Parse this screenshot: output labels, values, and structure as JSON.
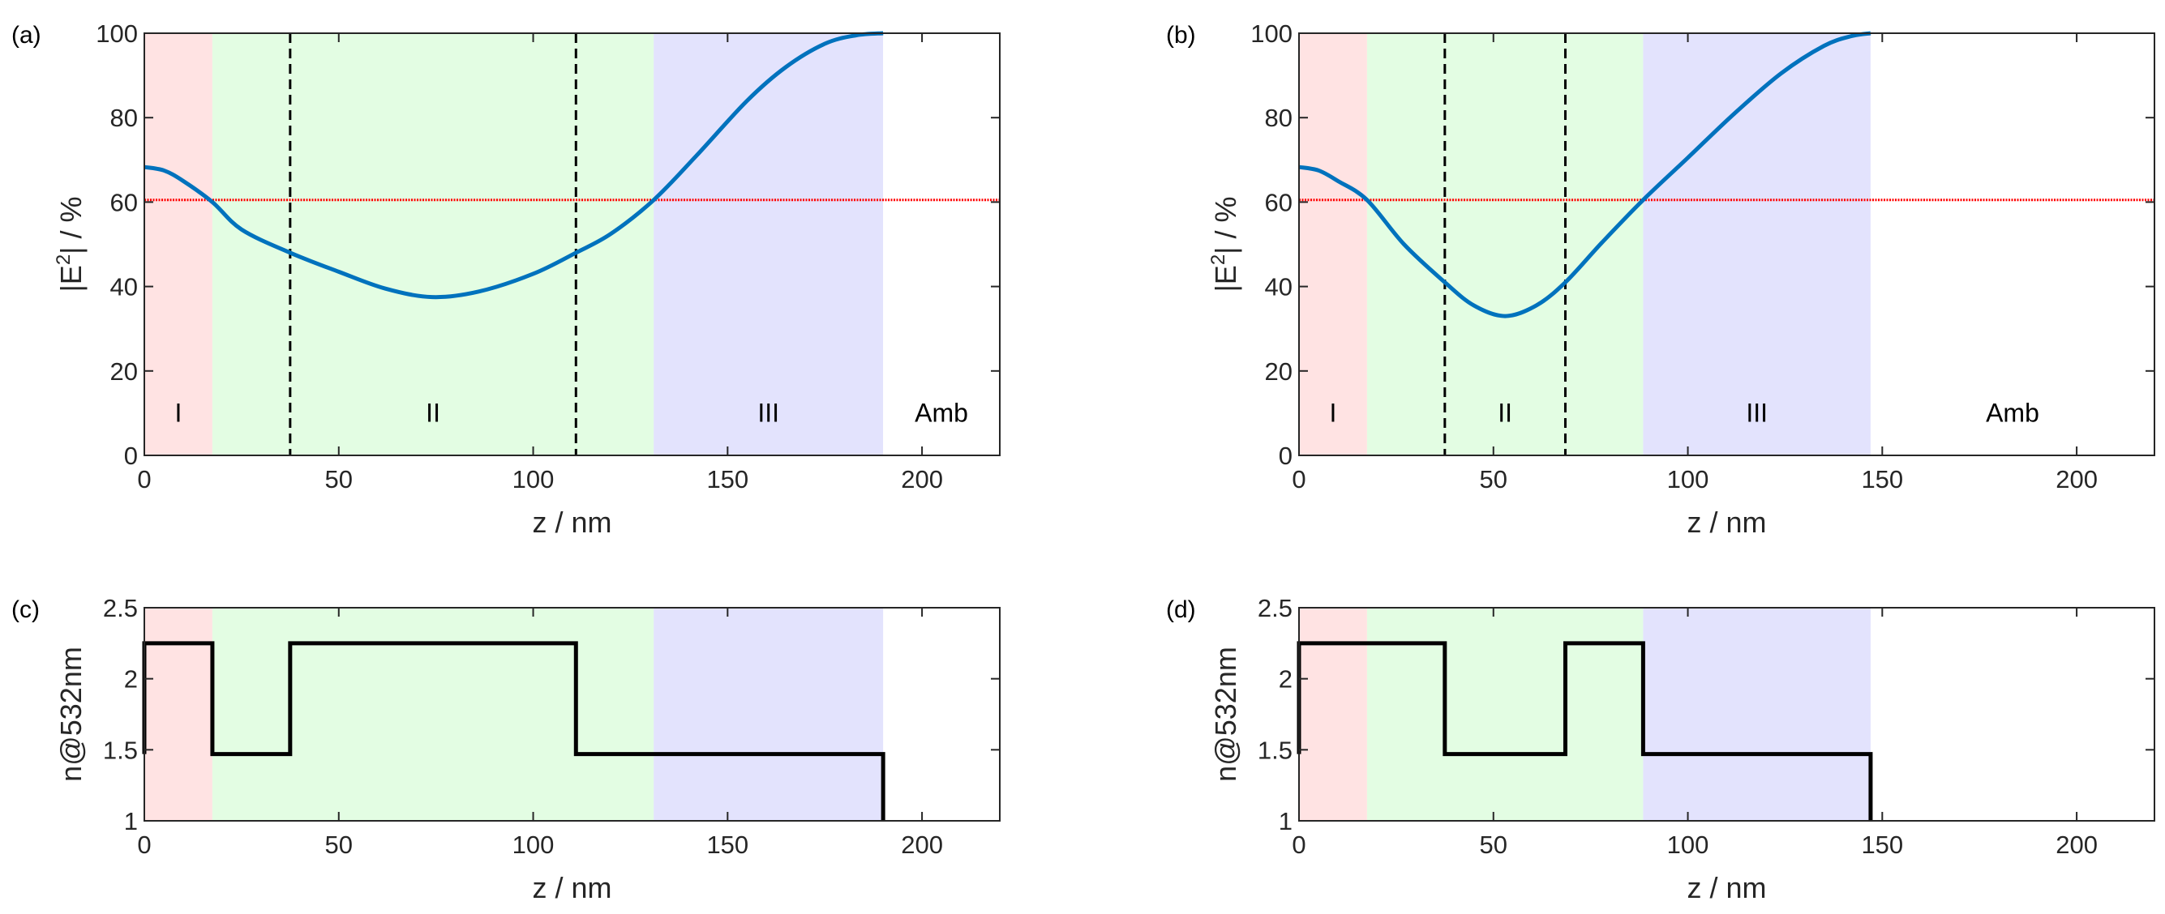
{
  "chart_data": [
    {
      "id": "a",
      "type": "line",
      "panel_label": "(a)",
      "xlabel": "z / nm",
      "ylabel": "|E2| / %",
      "ylabel_base": "|E",
      "ylabel_sup": "2",
      "ylabel_tail": "| / %",
      "xlim": [
        0,
        220
      ],
      "ylim": [
        0,
        100
      ],
      "xticks": [
        0,
        50,
        100,
        150,
        200
      ],
      "yticks": [
        0,
        20,
        40,
        60,
        80,
        100
      ],
      "regions": [
        {
          "label": "I",
          "from": 0,
          "to": 17.5,
          "color": "#ffe3e3"
        },
        {
          "label": "II",
          "from": 17.5,
          "to": 131,
          "color": "#e3fde3"
        },
        {
          "label": "III",
          "from": 131,
          "to": 190,
          "color": "#e3e3fd"
        },
        {
          "label": "Amb",
          "from": 190,
          "to": 220,
          "color": "#ffffff"
        }
      ],
      "dashed_lines_x": [
        37.5,
        111
      ],
      "reference_line_y": 60.5,
      "reference_color": "#ff0000",
      "series": [
        {
          "name": "|E2|",
          "color": "#0072bd",
          "x": [
            0,
            5,
            10,
            17.5,
            25,
            37.5,
            50,
            62,
            74,
            86,
            100,
            111,
            120,
            131,
            142,
            155,
            165,
            175,
            183,
            190
          ],
          "y": [
            68.3,
            67.5,
            65,
            60,
            53.5,
            48,
            43.5,
            39.5,
            37.5,
            38.8,
            43,
            48,
            52.5,
            60.5,
            71,
            84,
            92,
            97.5,
            99.5,
            100
          ]
        }
      ]
    },
    {
      "id": "b",
      "type": "line",
      "panel_label": "(b)",
      "xlabel": "z / nm",
      "ylabel": "|E2| / %",
      "ylabel_base": "|E",
      "ylabel_sup": "2",
      "ylabel_tail": "| / %",
      "xlim": [
        0,
        220
      ],
      "ylim": [
        0,
        100
      ],
      "xticks": [
        0,
        50,
        100,
        150,
        200
      ],
      "yticks": [
        0,
        20,
        40,
        60,
        80,
        100
      ],
      "regions": [
        {
          "label": "I",
          "from": 0,
          "to": 17.5,
          "color": "#ffe3e3"
        },
        {
          "label": "II",
          "from": 17.5,
          "to": 88.5,
          "color": "#e3fde3"
        },
        {
          "label": "III",
          "from": 88.5,
          "to": 147,
          "color": "#e3e3fd"
        },
        {
          "label": "Amb",
          "from": 147,
          "to": 220,
          "color": "#ffffff"
        }
      ],
      "dashed_lines_x": [
        37.5,
        68.5
      ],
      "reference_line_y": 60.5,
      "reference_color": "#ff0000",
      "series": [
        {
          "name": "|E2|",
          "color": "#0072bd",
          "x": [
            0,
            5,
            10,
            17.5,
            27,
            37.5,
            45,
            53,
            61,
            68.5,
            78,
            88.5,
            100,
            112,
            124,
            135,
            142,
            147
          ],
          "y": [
            68.3,
            67.5,
            65,
            60.5,
            50,
            41,
            35.5,
            33,
            35.5,
            41,
            50.5,
            60.5,
            70.5,
            81,
            90.5,
            97,
            99.3,
            100
          ]
        }
      ]
    },
    {
      "id": "c",
      "type": "line",
      "panel_label": "(c)",
      "xlabel": "z / nm",
      "ylabel": "n@532nm",
      "xlim": [
        0,
        220
      ],
      "ylim": [
        1,
        2.5
      ],
      "xticks": [
        0,
        50,
        100,
        150,
        200
      ],
      "yticks": [
        1,
        1.5,
        2,
        2.5
      ],
      "regions": [
        {
          "from": 0,
          "to": 17.5,
          "color": "#ffe3e3"
        },
        {
          "from": 17.5,
          "to": 131,
          "color": "#e3fde3"
        },
        {
          "from": 131,
          "to": 190,
          "color": "#e3e3fd"
        }
      ],
      "series": [
        {
          "name": "n",
          "color": "#000000",
          "step": true,
          "x": [
            0,
            0,
            17.5,
            17.5,
            37.5,
            37.5,
            111,
            111,
            190,
            190
          ],
          "y": [
            1.47,
            2.25,
            2.25,
            1.47,
            1.47,
            2.25,
            2.25,
            1.47,
            1.47,
            1
          ]
        }
      ]
    },
    {
      "id": "d",
      "type": "line",
      "panel_label": "(d)",
      "xlabel": "z / nm",
      "ylabel": "n@532nm",
      "xlim": [
        0,
        220
      ],
      "ylim": [
        1,
        2.5
      ],
      "xticks": [
        0,
        50,
        100,
        150,
        200
      ],
      "yticks": [
        1,
        1.5,
        2,
        2.5
      ],
      "regions": [
        {
          "from": 0,
          "to": 17.5,
          "color": "#ffe3e3"
        },
        {
          "from": 17.5,
          "to": 88.5,
          "color": "#e3fde3"
        },
        {
          "from": 88.5,
          "to": 147,
          "color": "#e3e3fd"
        }
      ],
      "series": [
        {
          "name": "n",
          "color": "#000000",
          "step": true,
          "x": [
            0,
            0,
            37.5,
            37.5,
            68.5,
            68.5,
            88.5,
            88.5,
            147,
            147
          ],
          "y": [
            1.47,
            2.25,
            2.25,
            1.47,
            1.47,
            2.25,
            2.25,
            1.47,
            1.47,
            1
          ]
        }
      ]
    }
  ]
}
